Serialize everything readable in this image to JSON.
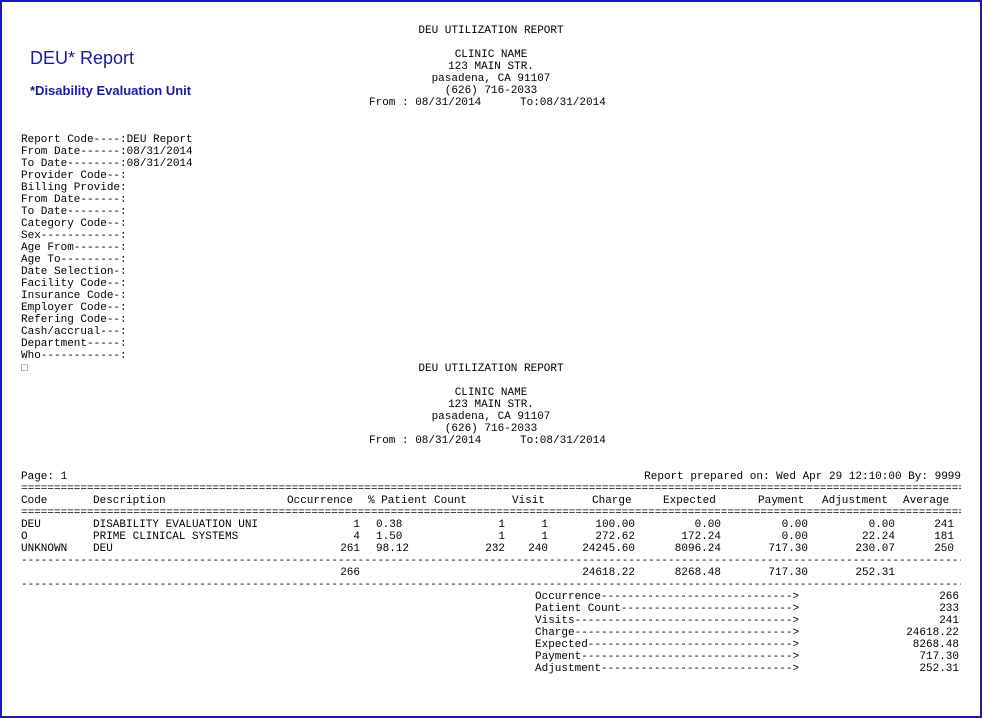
{
  "header": {
    "title": "DEU* Report",
    "subtitle": "*Disability Evaluation Unit"
  },
  "report_header": {
    "title": "DEU UTILIZATION REPORT",
    "clinic_name": "CLINIC NAME",
    "address": "123 MAIN STR.",
    "city": "pasadena, CA 91107",
    "phone": "(626) 716-2033",
    "from_label": "From : 08/31/2014",
    "to_label": "To:08/31/2014"
  },
  "criteria": [
    {
      "label": "Report Code----:",
      "value": "DEU Report"
    },
    {
      "label": "From Date------:",
      "value": "08/31/2014"
    },
    {
      "label": "To Date--------:",
      "value": "08/31/2014"
    },
    {
      "label": "Provider Code--:",
      "value": ""
    },
    {
      "label": "Billing Provide:",
      "value": ""
    },
    {
      "label": "From Date------:",
      "value": ""
    },
    {
      "label": "To Date--------:",
      "value": ""
    },
    {
      "label": "Category Code--:",
      "value": ""
    },
    {
      "label": "Sex------------:",
      "value": ""
    },
    {
      "label": "Age From-------:",
      "value": ""
    },
    {
      "label": "Age To---------:",
      "value": ""
    },
    {
      "label": "Date Selection-:",
      "value": ""
    },
    {
      "label": "Facility Code--:",
      "value": ""
    },
    {
      "label": "Insurance Code-:",
      "value": ""
    },
    {
      "label": "Employer Code--:",
      "value": ""
    },
    {
      "label": "Refering Code--:",
      "value": ""
    },
    {
      "label": "Cash/accrual---:",
      "value": ""
    },
    {
      "label": "Department-----:",
      "value": ""
    },
    {
      "label": "Who------------:",
      "value": ""
    }
  ],
  "page_marker": "□",
  "page_line": {
    "page": "Page: 1",
    "prepared": "Report prepared on: Wed Apr 29 12:10:00 By: 9999"
  },
  "table": {
    "columns": [
      "Code",
      "Description",
      "Occurrence",
      "% Patient Count",
      "Visit",
      "Charge",
      "Expected",
      "Payment",
      "Adjustment",
      "Average"
    ],
    "rows": [
      {
        "code": "DEU",
        "description": "DISABILITY EVALUATION UNI",
        "occurrence": "1",
        "percent": "0.38",
        "patient_count": "1",
        "visit": "1",
        "charge": "100.00",
        "expected": "0.00",
        "payment": "0.00",
        "adjustment": "0.00",
        "average": "241"
      },
      {
        "code": "O",
        "description": "PRIME CLINICAL SYSTEMS",
        "occurrence": "4",
        "percent": "1.50",
        "patient_count": "1",
        "visit": "1",
        "charge": "272.62",
        "expected": "172.24",
        "payment": "0.00",
        "adjustment": "22.24",
        "average": "181"
      },
      {
        "code": "UNKNOWN",
        "description": "DEU",
        "occurrence": "261",
        "percent": "98.12",
        "patient_count": "232",
        "visit": "240",
        "charge": "24245.60",
        "expected": "8096.24",
        "payment": "717.30",
        "adjustment": "230.07",
        "average": "250"
      }
    ],
    "totals": {
      "occurrence": "266",
      "charge": "24618.22",
      "expected": "8268.48",
      "payment": "717.30",
      "adjustment": "252.31"
    }
  },
  "summary": [
    {
      "label": "Occurrence----------------------------->",
      "value": "266"
    },
    {
      "label": "Patient Count-------------------------->",
      "value": "233"
    },
    {
      "label": "Visits--------------------------------->",
      "value": "241"
    },
    {
      "label": "Charge--------------------------------->",
      "value": "24618.22"
    },
    {
      "label": "Expected------------------------------->",
      "value": "8268.48"
    },
    {
      "label": "Payment-------------------------------->",
      "value": "717.30"
    },
    {
      "label": "Adjustment----------------------------->",
      "value": "252.31"
    }
  ],
  "separators": {
    "double": "===========================================================================================================================================================",
    "dash": "-----------------------------------------------------------------------------------------------------------------------------------------------------------"
  }
}
